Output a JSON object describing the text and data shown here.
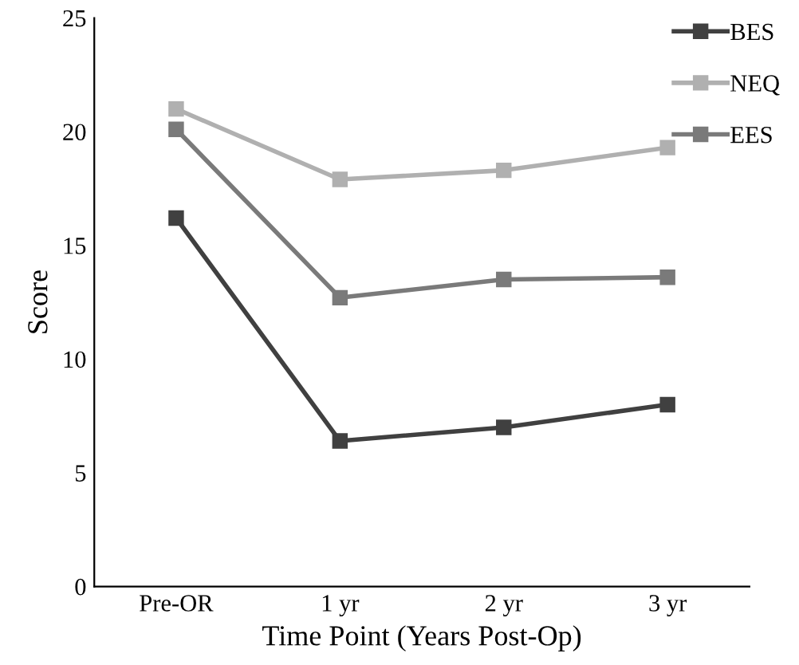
{
  "chart_data": {
    "type": "line",
    "xlabel": "Time Point (Years Post-Op)",
    "ylabel": "Score",
    "categories": [
      "Pre-OR",
      "1 yr",
      "2 yr",
      "3 yr"
    ],
    "series": [
      {
        "name": "BES",
        "color": "#404040",
        "values": [
          16.2,
          6.4,
          7.0,
          8.0
        ]
      },
      {
        "name": "NEQ",
        "color": "#b0b0b0",
        "values": [
          21.0,
          17.9,
          18.3,
          19.3
        ]
      },
      {
        "name": "EES",
        "color": "#7a7a7a",
        "values": [
          20.1,
          12.7,
          13.5,
          13.6
        ]
      }
    ],
    "ylim": [
      0,
      25
    ],
    "yticks": [
      0,
      5,
      10,
      15,
      20,
      25
    ],
    "grid": false,
    "legend": "top right",
    "marker": "square",
    "line_style": "solid"
  }
}
